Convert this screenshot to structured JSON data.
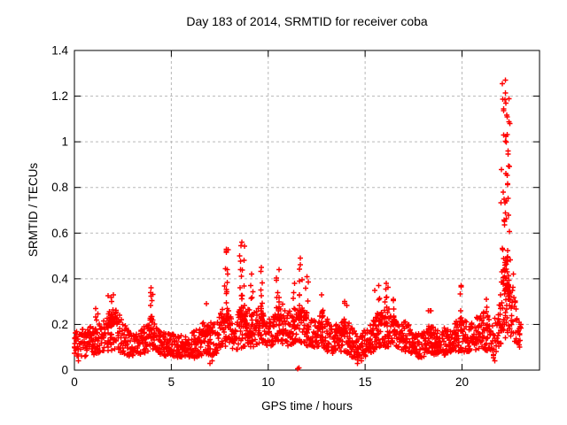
{
  "chart_data": {
    "type": "scatter",
    "title": "Day 183 of 2014, SRMTID for receiver coba",
    "xlabel": "GPS time / hours",
    "ylabel": "SRMTID / TECUs",
    "xlim": [
      0,
      24
    ],
    "ylim": [
      0,
      1.4
    ],
    "xticks": [
      {
        "v": 0,
        "label": "0"
      },
      {
        "v": 5,
        "label": "5"
      },
      {
        "v": 10,
        "label": "10"
      },
      {
        "v": 15,
        "label": "15"
      },
      {
        "v": 20,
        "label": "20"
      }
    ],
    "yticks": [
      {
        "v": 0,
        "label": "0"
      },
      {
        "v": 0.2,
        "label": "0.2"
      },
      {
        "v": 0.4,
        "label": "0.4"
      },
      {
        "v": 0.6,
        "label": "0.6"
      },
      {
        "v": 0.8,
        "label": "0.8"
      },
      {
        "v": 1,
        "label": "1"
      },
      {
        "v": 1.2,
        "label": "1.2"
      },
      {
        "v": 1.4,
        "label": "1.4"
      }
    ],
    "grid": true,
    "legend": "none",
    "marker": {
      "shape": "plus",
      "color": "#ff0000",
      "size": 3,
      "stroke_width": 1.4
    },
    "axis_color": "#000000",
    "grid_color": "#b8b8b8",
    "band_profile": [
      [
        0.0,
        0.06,
        0.18
      ],
      [
        0.7,
        0.06,
        0.18
      ],
      [
        1.1,
        0.07,
        0.22
      ],
      [
        1.6,
        0.08,
        0.25
      ],
      [
        2.1,
        0.09,
        0.28
      ],
      [
        2.5,
        0.07,
        0.22
      ],
      [
        2.9,
        0.06,
        0.16
      ],
      [
        3.4,
        0.07,
        0.17
      ],
      [
        3.8,
        0.08,
        0.22
      ],
      [
        4.0,
        0.08,
        0.24
      ],
      [
        4.4,
        0.06,
        0.18
      ],
      [
        5.0,
        0.06,
        0.16
      ],
      [
        5.7,
        0.05,
        0.15
      ],
      [
        6.2,
        0.05,
        0.17
      ],
      [
        6.8,
        0.07,
        0.22
      ],
      [
        7.2,
        0.06,
        0.2
      ],
      [
        7.6,
        0.09,
        0.26
      ],
      [
        7.9,
        0.1,
        0.3
      ],
      [
        8.3,
        0.08,
        0.22
      ],
      [
        8.7,
        0.1,
        0.3
      ],
      [
        9.2,
        0.1,
        0.26
      ],
      [
        9.7,
        0.12,
        0.28
      ],
      [
        10.1,
        0.1,
        0.24
      ],
      [
        10.6,
        0.12,
        0.28
      ],
      [
        11.0,
        0.1,
        0.26
      ],
      [
        11.4,
        0.12,
        0.28
      ],
      [
        11.7,
        0.12,
        0.3
      ],
      [
        12.1,
        0.1,
        0.24
      ],
      [
        12.5,
        0.08,
        0.22
      ],
      [
        12.8,
        0.1,
        0.26
      ],
      [
        13.2,
        0.07,
        0.2
      ],
      [
        13.6,
        0.08,
        0.21
      ],
      [
        14.0,
        0.08,
        0.24
      ],
      [
        14.4,
        0.05,
        0.18
      ],
      [
        14.8,
        0.04,
        0.16
      ],
      [
        15.2,
        0.06,
        0.2
      ],
      [
        15.7,
        0.1,
        0.26
      ],
      [
        16.1,
        0.1,
        0.28
      ],
      [
        16.5,
        0.1,
        0.26
      ],
      [
        17.0,
        0.08,
        0.22
      ],
      [
        17.5,
        0.07,
        0.19
      ],
      [
        17.9,
        0.05,
        0.16
      ],
      [
        18.3,
        0.07,
        0.21
      ],
      [
        18.8,
        0.06,
        0.18
      ],
      [
        19.4,
        0.07,
        0.2
      ],
      [
        19.9,
        0.08,
        0.23
      ],
      [
        20.3,
        0.08,
        0.21
      ],
      [
        20.8,
        0.09,
        0.24
      ],
      [
        21.2,
        0.09,
        0.26
      ],
      [
        21.6,
        0.05,
        0.2
      ],
      [
        21.9,
        0.1,
        0.3
      ],
      [
        22.1,
        0.12,
        0.45
      ],
      [
        22.35,
        0.15,
        0.5
      ],
      [
        22.55,
        0.15,
        0.4
      ],
      [
        22.75,
        0.12,
        0.33
      ],
      [
        23.0,
        0.1,
        0.22
      ],
      [
        23.1,
        0.1,
        0.2
      ]
    ],
    "bursts": [
      [
        1.1,
        0.15,
        0.27,
        10
      ],
      [
        2.0,
        0.4,
        0.33,
        26
      ],
      [
        3.95,
        0.12,
        0.36,
        12
      ],
      [
        6.8,
        0.25,
        0.29,
        12
      ],
      [
        7.85,
        0.17,
        0.53,
        24
      ],
      [
        8.65,
        0.22,
        0.56,
        28
      ],
      [
        9.15,
        0.1,
        0.42,
        10
      ],
      [
        9.65,
        0.15,
        0.45,
        14
      ],
      [
        10.55,
        0.2,
        0.44,
        20
      ],
      [
        11.35,
        0.1,
        0.38,
        8
      ],
      [
        11.65,
        0.13,
        0.49,
        16
      ],
      [
        12.0,
        0.1,
        0.41,
        8
      ],
      [
        12.75,
        0.15,
        0.33,
        10
      ],
      [
        13.95,
        0.15,
        0.3,
        8
      ],
      [
        15.7,
        0.2,
        0.37,
        14
      ],
      [
        16.1,
        0.15,
        0.38,
        12
      ],
      [
        16.45,
        0.1,
        0.31,
        8
      ],
      [
        18.35,
        0.1,
        0.26,
        6
      ],
      [
        19.95,
        0.08,
        0.37,
        8
      ],
      [
        21.25,
        0.15,
        0.31,
        8
      ],
      [
        22.25,
        0.28,
        1.27,
        85
      ]
    ],
    "outliers": [
      [
        11.52,
        0.005
      ],
      [
        11.58,
        0.01
      ],
      [
        0.2,
        0.04
      ],
      [
        7.0,
        0.03
      ],
      [
        7.1,
        0.04
      ],
      [
        14.6,
        0.03
      ],
      [
        21.7,
        0.04
      ],
      [
        22.6,
        0.35
      ],
      [
        22.65,
        0.42
      ],
      [
        22.7,
        0.28
      ],
      [
        22.8,
        0.22
      ],
      [
        22.9,
        0.17
      ],
      [
        23.0,
        0.13
      ]
    ],
    "render": {
      "seed": 7,
      "step": 0.02,
      "t_end": 23.05,
      "extra_point_prob": 0.55,
      "band_power": 1.2,
      "tail_power": 2.2,
      "sparse_after": 22.55,
      "sparse_prob": 0.55
    }
  }
}
